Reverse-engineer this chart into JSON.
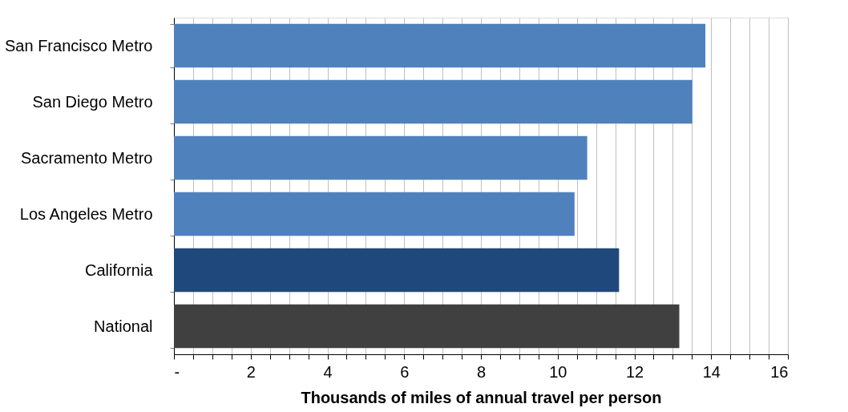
{
  "chart_data": {
    "type": "bar",
    "orientation": "horizontal",
    "xlabel": "Thousands of miles of annual travel per person",
    "categories": [
      "San Francisco Metro",
      "San Diego Metro",
      "Sacramento Metro",
      "Los Angeles Metro",
      "California",
      "National"
    ],
    "values": [
      13.85,
      13.51,
      10.77,
      10.44,
      11.6,
      13.17
    ],
    "colors": [
      "#4f81bd",
      "#4f81bd",
      "#4f81bd",
      "#4f81bd",
      "#1f497d",
      "#404040"
    ],
    "xlim": [
      0,
      16
    ],
    "xticks": [
      {
        "value": 0,
        "label": "-"
      },
      {
        "value": 0.5,
        "label": null
      },
      {
        "value": 1,
        "label": null
      },
      {
        "value": 1.5,
        "label": null
      },
      2,
      {
        "value": 2.5,
        "label": null
      },
      {
        "value": 3,
        "label": null
      },
      {
        "value": 3.5,
        "label": null
      },
      4,
      {
        "value": 4.5,
        "label": null
      },
      {
        "value": 5,
        "label": null
      },
      {
        "value": 5.5,
        "label": null
      },
      6,
      {
        "value": 6.5,
        "label": null
      },
      {
        "value": 7,
        "label": null
      },
      {
        "value": 7.5,
        "label": null
      },
      8,
      {
        "value": 8.5,
        "label": null
      },
      {
        "value": 9,
        "label": null
      },
      {
        "value": 9.5,
        "label": null
      },
      10,
      {
        "value": 10.5,
        "label": null
      },
      {
        "value": 11,
        "label": null
      },
      {
        "value": 11.5,
        "label": null
      },
      12,
      {
        "value": 12.5,
        "label": null
      },
      {
        "value": 13,
        "label": null
      },
      {
        "value": 13.5,
        "label": null
      },
      14,
      {
        "value": 14.5,
        "label": null
      },
      {
        "value": 15,
        "label": null
      },
      {
        "value": 15.5,
        "label": null
      },
      16
    ],
    "grid": "x"
  }
}
